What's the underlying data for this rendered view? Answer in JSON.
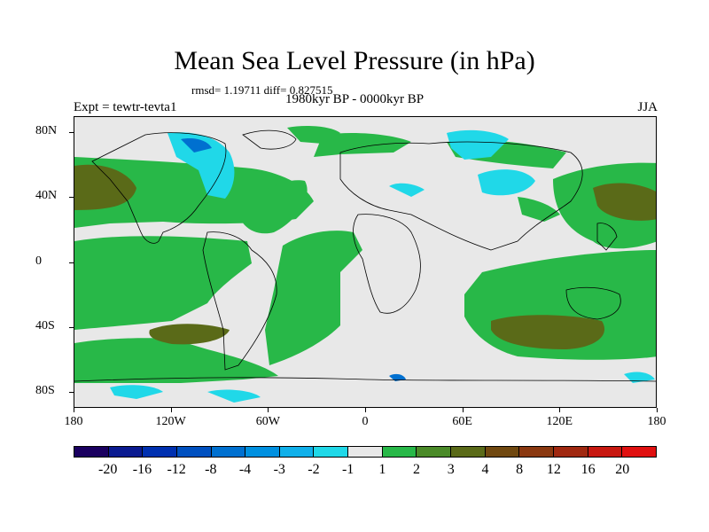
{
  "title": "Mean Sea Level Pressure (in hPa)",
  "stats": "rmsd= 1.19711 diff= 0.827515",
  "subtitle": "1980kyr BP - 0000kyr BP",
  "experiment": "Expt = tewtr-tevta1",
  "season": "JJA",
  "map": {
    "projection": "cylindrical-equidistant",
    "lon_range": [
      -180,
      180
    ],
    "lat_range": [
      -90,
      90
    ],
    "lat_ticks": [
      {
        "value": 80,
        "label": "80N"
      },
      {
        "value": 40,
        "label": "40N"
      },
      {
        "value": 0,
        "label": "0"
      },
      {
        "value": -40,
        "label": "40S"
      },
      {
        "value": -80,
        "label": "80S"
      }
    ],
    "lon_ticks": [
      {
        "value": -180,
        "label": "180"
      },
      {
        "value": -120,
        "label": "120W"
      },
      {
        "value": -60,
        "label": "60W"
      },
      {
        "value": 0,
        "label": "0"
      },
      {
        "value": 60,
        "label": "60E"
      },
      {
        "value": 120,
        "label": "120E"
      },
      {
        "value": 180,
        "label": "180"
      }
    ],
    "background_color": "#e8e8e8",
    "coastline_color": "#000000"
  },
  "colorbar": {
    "colors": [
      "#1a0060",
      "#0a1a90",
      "#0030b0",
      "#0050c0",
      "#0070d0",
      "#0090e0",
      "#10b0ea",
      "#20d8e8",
      "#e8e8e8",
      "#28b848",
      "#4a8a28",
      "#5a6a18",
      "#704810",
      "#8a3810",
      "#a02810",
      "#c81810",
      "#e01010"
    ],
    "labels": [
      "-20",
      "-16",
      "-12",
      "-8",
      "-4",
      "-3",
      "-2",
      "-1",
      "1",
      "2",
      "3",
      "4",
      "8",
      "12",
      "16",
      "20"
    ]
  }
}
